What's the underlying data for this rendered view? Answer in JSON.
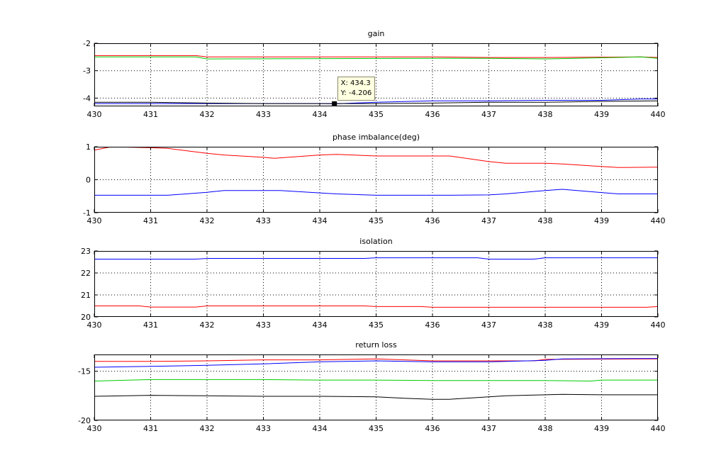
{
  "chart_data": [
    {
      "type": "line",
      "title": "gain",
      "xlabel": "",
      "ylabel": "",
      "xlim": [
        430,
        440
      ],
      "ylim": [
        -4.3,
        -2
      ],
      "xticks": [
        430,
        431,
        432,
        433,
        434,
        435,
        436,
        437,
        438,
        439,
        440
      ],
      "yticks": [
        -2,
        -3,
        -4
      ],
      "grid": true,
      "series": [
        {
          "color": "#ff0000",
          "x": [
            430,
            431.8,
            432,
            436,
            437,
            438,
            439.7,
            440
          ],
          "y": [
            -2.45,
            -2.45,
            -2.5,
            -2.5,
            -2.52,
            -2.52,
            -2.5,
            -2.52
          ]
        },
        {
          "color": "#00cc00",
          "x": [
            430,
            431.8,
            432,
            436,
            437,
            438,
            439.7,
            440
          ],
          "y": [
            -2.5,
            -2.5,
            -2.57,
            -2.55,
            -2.55,
            -2.57,
            -2.5,
            -2.55
          ]
        },
        {
          "color": "#0000ff",
          "x": [
            430,
            434,
            434.3,
            435,
            436,
            437,
            438,
            439,
            439.7,
            440
          ],
          "y": [
            -4.2,
            -4.2,
            -4.206,
            -4.15,
            -4.1,
            -4.1,
            -4.08,
            -4.08,
            -4.03,
            -4.03
          ]
        },
        {
          "color": "#000000",
          "x": [
            430,
            431,
            432,
            433,
            434,
            434.3,
            435,
            436,
            437,
            438,
            439,
            440
          ],
          "y": [
            -4.15,
            -4.15,
            -4.18,
            -4.2,
            -4.2,
            -4.2,
            -4.2,
            -4.18,
            -4.15,
            -4.15,
            -4.12,
            -4.1
          ]
        }
      ],
      "datatip": {
        "x_label": "X: 434.3",
        "y_label": "Y: -4.206",
        "x": 434.26,
        "y": -4.206
      }
    },
    {
      "type": "line",
      "title": "phase imbalance(deg)",
      "xlabel": "",
      "ylabel": "",
      "xlim": [
        430,
        440
      ],
      "ylim": [
        -1,
        1
      ],
      "xticks": [
        430,
        431,
        432,
        433,
        434,
        435,
        436,
        437,
        438,
        439,
        440
      ],
      "yticks": [
        1,
        0,
        -1
      ],
      "grid": true,
      "series": [
        {
          "color": "#ff0000",
          "x": [
            430,
            430.3,
            431,
            431.3,
            432,
            432.3,
            433,
            433.2,
            434,
            434.3,
            435,
            436,
            436.3,
            437,
            437.3,
            438,
            438.3,
            439,
            439.3,
            440
          ],
          "y": [
            0.9,
            1.0,
            0.97,
            0.95,
            0.8,
            0.75,
            0.68,
            0.65,
            0.75,
            0.77,
            0.72,
            0.72,
            0.72,
            0.55,
            0.5,
            0.5,
            0.48,
            0.4,
            0.37,
            0.38
          ]
        },
        {
          "color": "#0000ff",
          "x": [
            430,
            431,
            431.3,
            432,
            432.3,
            433,
            433.3,
            434,
            434.3,
            435,
            436,
            436.3,
            437,
            437.3,
            438,
            438.3,
            439,
            439.3,
            440
          ],
          "y": [
            -0.47,
            -0.47,
            -0.47,
            -0.38,
            -0.33,
            -0.33,
            -0.33,
            -0.4,
            -0.43,
            -0.47,
            -0.47,
            -0.47,
            -0.46,
            -0.43,
            -0.33,
            -0.29,
            -0.39,
            -0.43,
            -0.43
          ]
        }
      ]
    },
    {
      "type": "line",
      "title": "isolation",
      "xlabel": "",
      "ylabel": "",
      "xlim": [
        430,
        440
      ],
      "ylim": [
        20,
        23
      ],
      "xticks": [
        430,
        431,
        432,
        433,
        434,
        435,
        436,
        437,
        438,
        439,
        440
      ],
      "yticks": [
        23,
        22,
        21,
        20
      ],
      "grid": true,
      "series": [
        {
          "color": "#0000ff",
          "x": [
            430,
            431.8,
            432,
            434.8,
            435,
            436,
            436.8,
            437,
            437.8,
            438,
            440
          ],
          "y": [
            22.63,
            22.63,
            22.66,
            22.66,
            22.69,
            22.69,
            22.69,
            22.63,
            22.63,
            22.69,
            22.69
          ]
        },
        {
          "color": "#ff0000",
          "x": [
            430,
            430.8,
            431,
            431.8,
            432,
            434.8,
            435,
            435.8,
            436,
            439.8,
            440
          ],
          "y": [
            20.5,
            20.5,
            20.45,
            20.45,
            20.5,
            20.5,
            20.47,
            20.47,
            20.44,
            20.44,
            20.47
          ]
        }
      ]
    },
    {
      "type": "line",
      "title": "return loss",
      "xlabel": "",
      "ylabel": "",
      "xlim": [
        430,
        440
      ],
      "ylim": [
        -20,
        -13.3
      ],
      "xticks": [
        430,
        431,
        432,
        433,
        434,
        435,
        436,
        437,
        438,
        439,
        440
      ],
      "yticks": [
        -15,
        -20
      ],
      "grid": true,
      "series": [
        {
          "color": "#ff0000",
          "x": [
            430,
            431,
            432,
            433,
            434,
            435,
            436,
            437,
            437.8,
            438,
            440
          ],
          "y": [
            -14.0,
            -14.0,
            -13.95,
            -13.85,
            -13.85,
            -13.75,
            -13.95,
            -13.95,
            -13.95,
            -13.8,
            -13.75
          ]
        },
        {
          "color": "#0000ff",
          "x": [
            430,
            431,
            432,
            433,
            434,
            435,
            436,
            437,
            438,
            438.3,
            440
          ],
          "y": [
            -14.6,
            -14.5,
            -14.4,
            -14.25,
            -14.05,
            -13.95,
            -14.05,
            -14.05,
            -13.9,
            -13.75,
            -13.7
          ]
        },
        {
          "color": "#00cc00",
          "x": [
            430,
            431,
            432,
            433,
            434,
            435,
            436,
            437,
            438,
            438.8,
            439,
            440
          ],
          "y": [
            -16.0,
            -15.85,
            -15.85,
            -15.85,
            -15.9,
            -15.9,
            -15.95,
            -15.95,
            -15.95,
            -16.0,
            -15.9,
            -15.9
          ]
        },
        {
          "color": "#000000",
          "x": [
            430,
            431,
            432,
            433,
            434,
            435,
            435.5,
            436,
            436.3,
            437,
            437.3,
            438,
            438.3,
            439,
            440
          ],
          "y": [
            -17.55,
            -17.45,
            -17.5,
            -17.55,
            -17.55,
            -17.6,
            -17.75,
            -17.85,
            -17.85,
            -17.6,
            -17.5,
            -17.4,
            -17.35,
            -17.4,
            -17.4
          ]
        }
      ]
    }
  ]
}
